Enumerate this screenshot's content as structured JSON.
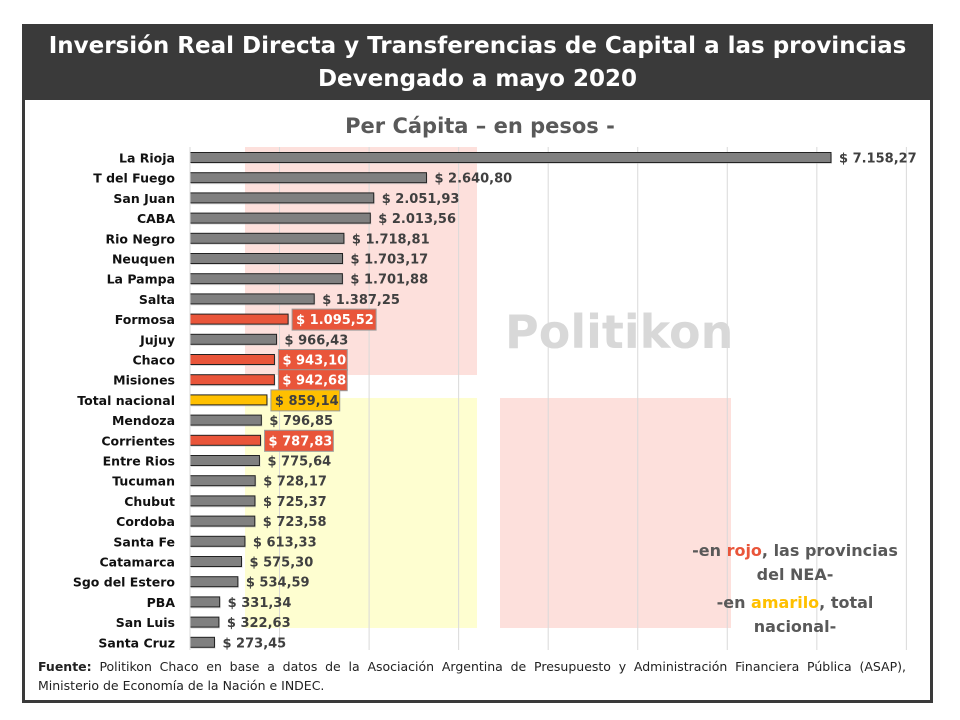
{
  "header": {
    "line1": "Inversión Real Directa y Transferencias de Capital a las provincias",
    "line2": "Devengado a mayo 2020"
  },
  "watermark": "Politikon",
  "chart_data": {
    "type": "bar",
    "orientation": "horizontal",
    "title": "Per Cápita – en pesos -",
    "xlim": [
      0,
      8000
    ],
    "grid": true,
    "categories": [
      "La Rioja",
      "T del Fuego",
      "San Juan",
      "CABA",
      "Rio Negro",
      "Neuquen",
      "La Pampa",
      "Salta",
      "Formosa",
      "Jujuy",
      "Chaco",
      "Misiones",
      "Total nacional",
      "Mendoza",
      "Corrientes",
      "Entre Rios",
      "Tucuman",
      "Chubut",
      "Cordoba",
      "Santa Fe",
      "Catamarca",
      "Sgo del Estero",
      "PBA",
      "San Luis",
      "Santa Cruz"
    ],
    "values": [
      7158.27,
      2640.8,
      2051.93,
      2013.56,
      1718.81,
      1703.17,
      1701.88,
      1387.25,
      1095.52,
      966.43,
      943.1,
      942.68,
      859.14,
      796.85,
      787.83,
      775.64,
      728.17,
      725.37,
      723.58,
      613.33,
      575.3,
      534.59,
      331.34,
      322.63,
      273.45
    ],
    "labels": [
      "$ 7.158,27",
      "$ 2.640,80",
      "$ 2.051,93",
      "$ 2.013,56",
      "$ 1.718,81",
      "$ 1.703,17",
      "$ 1.701,88",
      "$ 1.387,25",
      "$ 1.095,52",
      "$ 966,43",
      "$ 943,10",
      "$ 942,68",
      "$ 859,14",
      "$ 796,85",
      "$ 787,83",
      "$ 775,64",
      "$ 728,17",
      "$ 725,37",
      "$ 723,58",
      "$ 613,33",
      "$ 575,30",
      "$ 534,59",
      "$ 331,34",
      "$ 322,63",
      "$ 273,45"
    ],
    "highlight": {
      "Formosa": "nea",
      "Chaco": "nea",
      "Misiones": "nea",
      "Corrientes": "nea",
      "Total nacional": "total"
    },
    "colors": {
      "default": "#808080",
      "nea": "#e9553a",
      "total": "#ffc000"
    }
  },
  "notes": {
    "l1a": "-en ",
    "l1b": "rojo",
    "l1c": ", las provincias",
    "l2": "del NEA-",
    "l3a": "-en ",
    "l3b": "amarilo",
    "l3c": ",  total",
    "l4": "nacional-"
  },
  "source": {
    "label": "Fuente:",
    "text": " Politikon Chaco en base a datos de la Asociación Argentina de Presupuesto y Administración Financiera Pública (ASAP), Ministerio de Economía de la Nación e INDEC."
  }
}
